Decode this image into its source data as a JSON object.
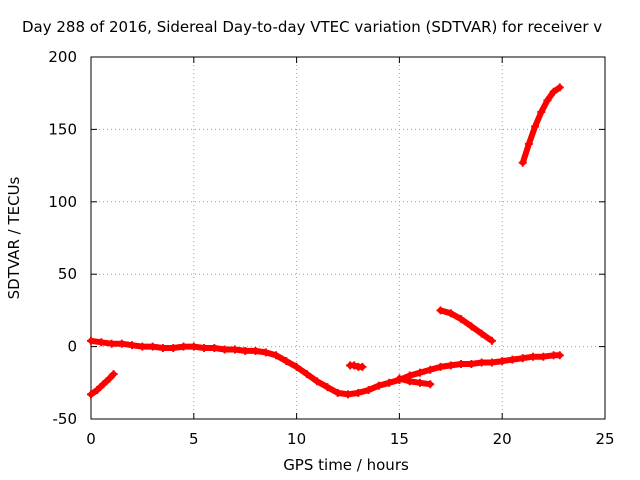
{
  "chart_data": {
    "type": "scatter",
    "title": "Day 288 of 2016, Sidereal Day-to-day VTEC variation (SDTVAR) for receiver v",
    "xlabel": "GPS time / hours",
    "ylabel": "SDTVAR / TECUs",
    "xlim": [
      0,
      25
    ],
    "ylim": [
      -50,
      200
    ],
    "x_ticks": [
      "0",
      "5",
      "10",
      "15",
      "20",
      "25"
    ],
    "y_ticks": [
      "-50",
      "0",
      "50",
      "100",
      "150",
      "200"
    ],
    "grid": true,
    "legend": "none",
    "series_color": "#ff0000",
    "series": [
      {
        "x": [
          0.0,
          0.5,
          1.0,
          1.5,
          2.0,
          2.5,
          3.0,
          3.5,
          4.0,
          4.5,
          5.0,
          5.5,
          6.0,
          6.5,
          7.0,
          7.5,
          8.0,
          8.5,
          9.0,
          9.5,
          10.0,
          10.5,
          11.0,
          11.5,
          12.0,
          12.5,
          13.0,
          13.5,
          14.0,
          14.5,
          15.0,
          15.5,
          16.0,
          16.5,
          17.0,
          17.5,
          18.0,
          18.5,
          19.0,
          19.5,
          20.0,
          20.5,
          21.0,
          21.5,
          22.0,
          22.5,
          22.8
        ],
        "y": [
          4,
          3,
          2,
          2,
          1,
          0,
          0,
          -1,
          -1,
          0,
          0,
          -1,
          -1,
          -2,
          -2,
          -3,
          -3,
          -4,
          -6,
          -10,
          -14,
          -19,
          -24,
          -28,
          -32,
          -33,
          -32,
          -30,
          -27,
          -25,
          -23,
          -20,
          -18,
          -16,
          -14,
          -13,
          -12,
          -12,
          -11,
          -11,
          -10,
          -9,
          -8,
          -7,
          -7,
          -6,
          -6
        ]
      },
      {
        "x": [
          0.0,
          0.3,
          0.6,
          0.9,
          1.1
        ],
        "y": [
          -33,
          -30,
          -26,
          -22,
          -19
        ]
      },
      {
        "x": [
          12.6,
          12.8,
          13.0,
          13.2
        ],
        "y": [
          -13,
          -13,
          -14,
          -14
        ]
      },
      {
        "x": [
          17.0,
          17.5,
          18.0,
          18.5,
          19.0,
          19.5
        ],
        "y": [
          25,
          23,
          19,
          14,
          9,
          4
        ]
      },
      {
        "x": [
          15.0,
          15.5,
          16.0,
          16.5
        ],
        "y": [
          -22,
          -24,
          -25,
          -26
        ]
      },
      {
        "x": [
          21.0,
          21.3,
          21.6,
          21.9,
          22.2,
          22.5,
          22.8
        ],
        "y": [
          127,
          140,
          152,
          162,
          170,
          176,
          179
        ]
      }
    ]
  }
}
